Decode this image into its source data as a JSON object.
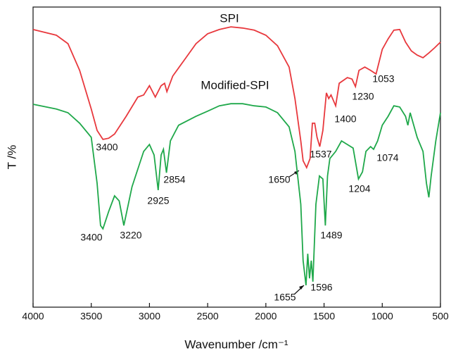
{
  "chart_data": {
    "type": "line",
    "x_label": "Wavenumber /cm⁻¹",
    "y_label": "T /%",
    "xlim": [
      4000,
      500
    ],
    "xticks": [
      4000,
      3500,
      3000,
      2500,
      2000,
      1500,
      1000,
      500
    ],
    "ylim": [
      0,
      100
    ],
    "series": [
      {
        "name": "SPI",
        "color": "#e8383d",
        "x": [
          4000,
          3800,
          3700,
          3600,
          3500,
          3450,
          3400,
          3350,
          3300,
          3200,
          3100,
          3050,
          3000,
          2950,
          2900,
          2870,
          2850,
          2800,
          2700,
          2600,
          2500,
          2400,
          2300,
          2200,
          2100,
          2000,
          1900,
          1800,
          1750,
          1700,
          1680,
          1650,
          1620,
          1600,
          1580,
          1560,
          1537,
          1510,
          1480,
          1460,
          1440,
          1400,
          1370,
          1300,
          1260,
          1230,
          1200,
          1150,
          1100,
          1053,
          1000,
          950,
          900,
          850,
          800,
          750,
          700,
          650,
          600,
          550,
          500
        ],
        "values": [
          92.5,
          90.6,
          87.8,
          78.9,
          66,
          58.9,
          55.9,
          56.3,
          57.7,
          63.6,
          70,
          70.7,
          73.8,
          70,
          73.8,
          74.6,
          71.8,
          77,
          82.4,
          87.8,
          91.1,
          92.5,
          93.4,
          93,
          92.3,
          90.6,
          87.1,
          80,
          69.5,
          55.4,
          48.8,
          46.5,
          49.5,
          61.3,
          61.3,
          56.6,
          53.5,
          58.9,
          71.4,
          69.5,
          70.7,
          67.1,
          74.6,
          76.5,
          76,
          73.5,
          78.9,
          80,
          78.9,
          77.7,
          85.9,
          89.4,
          92.3,
          92.5,
          88.3,
          85.4,
          84,
          83.1,
          84.7,
          86.4,
          88.3
        ],
        "peaks": [
          3400,
          1650,
          1537,
          1400,
          1230,
          1053
        ]
      },
      {
        "name": "Modified-SPI",
        "color": "#1fa84a",
        "x": [
          4000,
          3800,
          3700,
          3600,
          3500,
          3450,
          3420,
          3400,
          3350,
          3300,
          3260,
          3220,
          3150,
          3100,
          3050,
          3000,
          2960,
          2925,
          2900,
          2880,
          2854,
          2820,
          2750,
          2600,
          2500,
          2400,
          2300,
          2200,
          2100,
          2000,
          1900,
          1800,
          1750,
          1700,
          1680,
          1655,
          1640,
          1625,
          1610,
          1596,
          1570,
          1540,
          1510,
          1489,
          1470,
          1450,
          1400,
          1350,
          1300,
          1250,
          1204,
          1170,
          1140,
          1100,
          1074,
          1040,
          1000,
          950,
          900,
          850,
          800,
          780,
          760,
          700,
          650,
          620,
          600,
          580,
          540,
          500
        ],
        "values": [
          67.6,
          66,
          64.8,
          61.3,
          56.6,
          41.3,
          27.2,
          26.1,
          31.9,
          37.1,
          35.4,
          27.2,
          40.1,
          46,
          51.9,
          54.2,
          50.7,
          39,
          50.7,
          52.6,
          44.8,
          55.4,
          60.6,
          63.6,
          65.3,
          67.1,
          67.8,
          67.8,
          67.1,
          66.7,
          64.8,
          60.1,
          51.9,
          34.3,
          15.5,
          7.3,
          17.8,
          9.6,
          15.5,
          8.5,
          34.3,
          43.7,
          42.7,
          27.2,
          43.7,
          49.5,
          51.9,
          55.4,
          54.2,
          53,
          42.7,
          45.1,
          51.9,
          53.5,
          52.6,
          55.4,
          60.6,
          63.6,
          67.1,
          66.7,
          63.6,
          60.6,
          64.8,
          56.6,
          51.9,
          41.3,
          36.6,
          43.7,
          55.4,
          64.8
        ],
        "peaks": [
          3400,
          3220,
          2925,
          2854,
          1655,
          1596,
          1489,
          1204,
          1074
        ]
      }
    ]
  }
}
